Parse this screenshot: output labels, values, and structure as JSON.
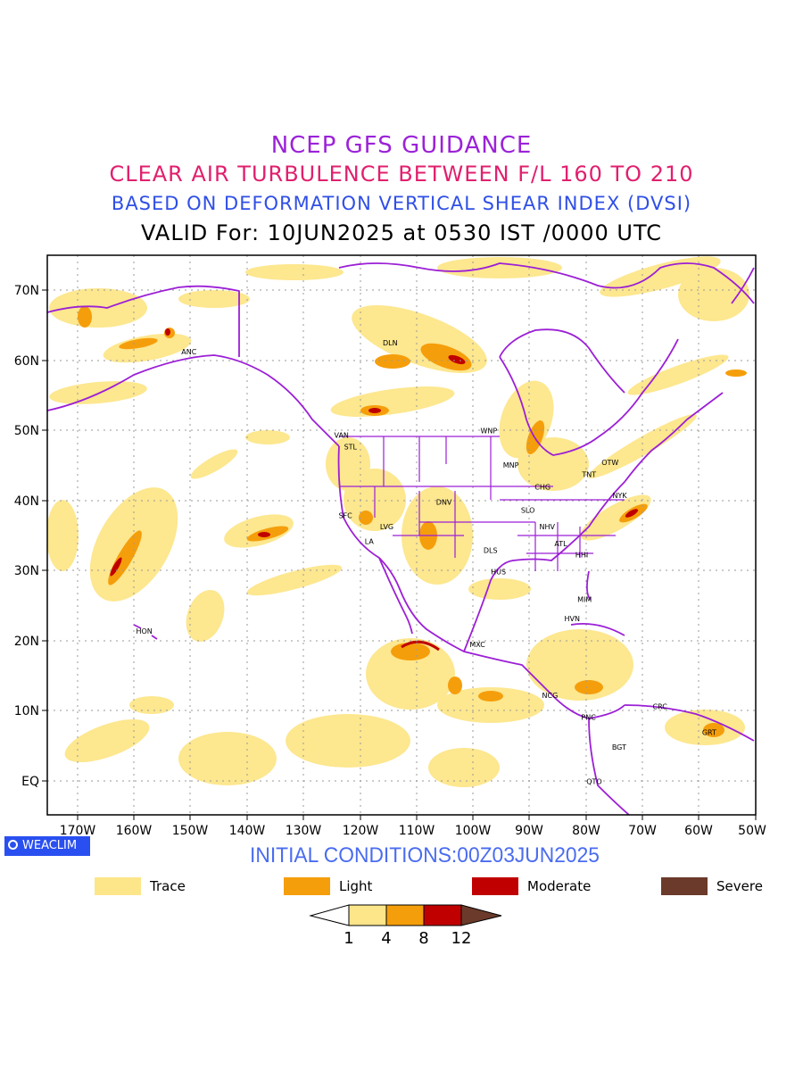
{
  "titles": {
    "line1": "NCEP GFS GUIDANCE",
    "line2": "CLEAR AIR TURBULENCE BETWEEN F/L 160 TO 210",
    "line3": "BASED ON DEFORMATION VERTICAL SHEAR INDEX (DVSI)",
    "line4": "VALID For: 10JUN2025 at 0530 IST /0000 UTC"
  },
  "map": {
    "lon_labels": [
      "170W",
      "160W",
      "150W",
      "140W",
      "130W",
      "120W",
      "110W",
      "100W",
      "90W",
      "80W",
      "70W",
      "60W",
      "50W"
    ],
    "lat_labels": [
      "70N",
      "60N",
      "50N",
      "40N",
      "30N",
      "20N",
      "10N",
      "EQ"
    ],
    "lon_range": [
      -175,
      -50
    ],
    "lat_range": [
      -5,
      75
    ],
    "colors": {
      "boundary": "#9c1fd6",
      "grid": "#999999",
      "trace": "#fde68a",
      "light": "#f59e0b",
      "moderate": "#c00000",
      "severe": "#6b3a2a"
    }
  },
  "cities": [
    {
      "name": "ANC",
      "lon": -150,
      "lat": 61.2
    },
    {
      "name": "DLN",
      "lon": -114.5,
      "lat": 62.5
    },
    {
      "name": "VAN",
      "lon": -123.1,
      "lat": 49.3
    },
    {
      "name": "STL",
      "lon": -121.5,
      "lat": 47.6
    },
    {
      "name": "WNP",
      "lon": -97.1,
      "lat": 49.9
    },
    {
      "name": "MNP",
      "lon": -93.2,
      "lat": 45
    },
    {
      "name": "OTW",
      "lon": -75.7,
      "lat": 45.4
    },
    {
      "name": "TNT",
      "lon": -79.4,
      "lat": 43.7
    },
    {
      "name": "CHG",
      "lon": -87.6,
      "lat": 41.9
    },
    {
      "name": "NYK",
      "lon": -74,
      "lat": 40.7
    },
    {
      "name": "DNV",
      "lon": -105,
      "lat": 39.7
    },
    {
      "name": "SFC",
      "lon": -122.4,
      "lat": 37.8
    },
    {
      "name": "SLO",
      "lon": -90.2,
      "lat": 38.6
    },
    {
      "name": "LVG",
      "lon": -115.1,
      "lat": 36.2
    },
    {
      "name": "NHV",
      "lon": -86.8,
      "lat": 36.2
    },
    {
      "name": "LA",
      "lon": -118.2,
      "lat": 34.1
    },
    {
      "name": "ATL",
      "lon": -84.4,
      "lat": 33.8
    },
    {
      "name": "DLS",
      "lon": -96.8,
      "lat": 32.8
    },
    {
      "name": "HHI",
      "lon": -80.7,
      "lat": 32.2
    },
    {
      "name": "HUS",
      "lon": -95.4,
      "lat": 29.8
    },
    {
      "name": "MIM",
      "lon": -80.2,
      "lat": 25.8
    },
    {
      "name": "HVN",
      "lon": -82.4,
      "lat": 23.1
    },
    {
      "name": "HON",
      "lon": -157.9,
      "lat": 21.3
    },
    {
      "name": "MXC",
      "lon": -99.1,
      "lat": 19.4
    },
    {
      "name": "NCG",
      "lon": -86.3,
      "lat": 12.1
    },
    {
      "name": "CRC",
      "lon": -66.9,
      "lat": 10.5
    },
    {
      "name": "PNC",
      "lon": -79.5,
      "lat": 9
    },
    {
      "name": "GRT",
      "lon": -58.2,
      "lat": 6.8
    },
    {
      "name": "BGT",
      "lon": -74.1,
      "lat": 4.7
    },
    {
      "name": "QTO",
      "lon": -78.5,
      "lat": -0.2
    }
  ],
  "brand": "WEACLIM",
  "initial_conditions": "INITIAL CONDITIONS:00Z03JUN2025",
  "legend": [
    {
      "label": "Trace",
      "color": "#fde68a"
    },
    {
      "label": "Light",
      "color": "#f59e0b"
    },
    {
      "label": "Moderate",
      "color": "#c00000"
    },
    {
      "label": "Severe",
      "color": "#6b3a2a"
    }
  ],
  "colorbar": {
    "labels": [
      "1",
      "4",
      "8",
      "12"
    ],
    "colors": [
      "#ffffff",
      "#fde68a",
      "#f59e0b",
      "#c00000",
      "#6b3a2a"
    ]
  }
}
